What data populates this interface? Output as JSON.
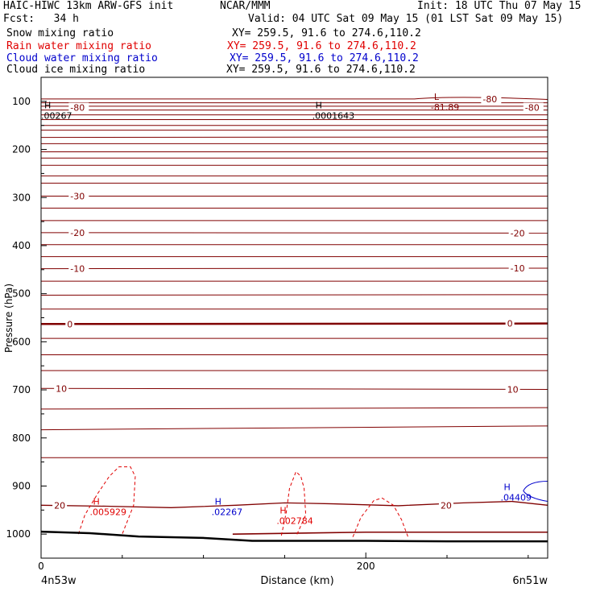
{
  "header": {
    "left1": "HAIC-HIWC 13km ARW-GFS init",
    "center1": "NCAR/MMM",
    "right1": "Init: 18 UTC Thu 07 May 15",
    "left2": "Fcst:   34 h",
    "right2": "Valid: 04 UTC Sat 09 May 15 (01 LST Sat 09 May 15)",
    "fields": [
      {
        "name": "Snow mixing ratio",
        "xy": "XY= 259.5, 91.6 to 274.6,110.2",
        "color": "#000000"
      },
      {
        "name": "Rain water mixing ratio",
        "xy": "XY= 259.5, 91.6 to 274.6,110.2",
        "color": "#e00000"
      },
      {
        "name": "Cloud water mixing ratio",
        "xy": "XY= 259.5, 91.6 to 274.6,110.2",
        "color": "#0000cc"
      },
      {
        "name": "Cloud ice mixing ratio",
        "xy": "XY= 259.5, 91.6 to 274.6,110.2",
        "color": "#000000"
      }
    ]
  },
  "chart_data": {
    "type": "line",
    "title": "",
    "ylabel": "Pressure (hPa)",
    "xlabel": "Distance (km)",
    "ylim": [
      1050,
      50
    ],
    "xlim": [
      0,
      312
    ],
    "y_ticks": [
      100,
      200,
      300,
      400,
      500,
      600,
      700,
      800,
      900,
      1000
    ],
    "x_ticks": [
      0,
      200
    ],
    "x_end_labels": {
      "left": "4n53w",
      "right": "6n51w"
    },
    "isotherm_color": "#800000",
    "rain_color": "#e00000",
    "cloud_water_color": "#0000cc",
    "temperature_contour_labels": [
      {
        "text": "-80",
        "x": 18,
        "p": 113
      },
      {
        "text": "-80",
        "x": 272,
        "p": 95
      },
      {
        "text": "-80",
        "x": 298,
        "p": 113
      },
      {
        "text": "-30",
        "x": 18,
        "p": 297
      },
      {
        "text": "-20",
        "x": 18,
        "p": 373
      },
      {
        "text": "-20",
        "x": 289,
        "p": 374
      },
      {
        "text": "-10",
        "x": 18,
        "p": 448
      },
      {
        "text": "-10",
        "x": 289,
        "p": 447
      },
      {
        "text": "0",
        "x": 16,
        "p": 563
      },
      {
        "text": "0",
        "x": 287,
        "p": 562
      },
      {
        "text": "10",
        "x": 9,
        "p": 697
      },
      {
        "text": "10",
        "x": 287,
        "p": 699
      },
      {
        "text": "20",
        "x": 8,
        "p": 940
      },
      {
        "text": "20",
        "x": 246,
        "p": 940
      }
    ],
    "extrema": [
      {
        "symbol": "L",
        "value": "-81.89",
        "x": 240,
        "p": 100,
        "color": "#800000"
      },
      {
        "symbol": "H",
        "value": ".00267",
        "x": 0,
        "p": 118,
        "color": "#000000"
      },
      {
        "symbol": "H",
        "value": ".0001643",
        "x": 167,
        "p": 118,
        "color": "#000000"
      },
      {
        "symbol": "H",
        "value": ".005929",
        "x": 30,
        "p": 942,
        "color": "#e00000"
      },
      {
        "symbol": "H",
        "value": ".002784",
        "x": 145,
        "p": 960,
        "color": "#e00000"
      },
      {
        "symbol": "H",
        "value": ".02267",
        "x": 105,
        "p": 942,
        "color": "#0000cc"
      },
      {
        "symbol": "H",
        "value": ".04409",
        "x": 283,
        "p": 912,
        "color": "#0000cc"
      }
    ],
    "terrain": {
      "x": [
        0,
        30,
        60,
        100,
        130,
        200,
        250,
        312
      ],
      "p": [
        995,
        998,
        1005,
        1008,
        1014,
        1014,
        1015,
        1015
      ]
    }
  }
}
